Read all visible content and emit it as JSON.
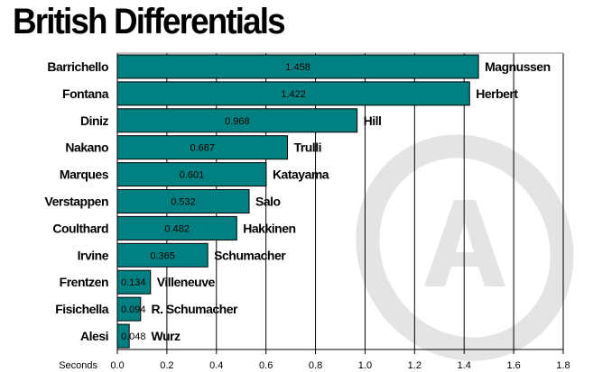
{
  "chart_data": {
    "type": "bar",
    "orientation": "horizontal",
    "title": "British Differentials",
    "xlabel": "Seconds",
    "xlim": [
      0,
      1.8
    ],
    "xticks": [
      "0.0",
      "0.2",
      "0.4",
      "0.6",
      "0.8",
      "1.0",
      "1.2",
      "1.4",
      "1.6",
      "1.8"
    ],
    "grid": true,
    "categories": [
      "Barrichello",
      "Fontana",
      "Diniz",
      "Nakano",
      "Marques",
      "Verstappen",
      "Coulthard",
      "Irvine",
      "Frentzen",
      "Fisichella",
      "Alesi"
    ],
    "values": [
      1.458,
      1.422,
      0.968,
      0.687,
      0.601,
      0.532,
      0.482,
      0.365,
      0.134,
      0.094,
      0.048
    ],
    "value_labels": [
      "1.458",
      "1.422",
      "0.968",
      "0.687",
      "0.601",
      "0.532",
      "0.482",
      "0.365",
      "0.134",
      "0.094",
      "0.048"
    ],
    "compared_to": [
      "Magnussen",
      "Herbert",
      "Hill",
      "Trulli",
      "Katayama",
      "Salo",
      "Hakkinen",
      "Schumacher",
      "Villeneuve",
      "R. Schumacher",
      "Wurz"
    ],
    "bar_color": "#008080"
  }
}
